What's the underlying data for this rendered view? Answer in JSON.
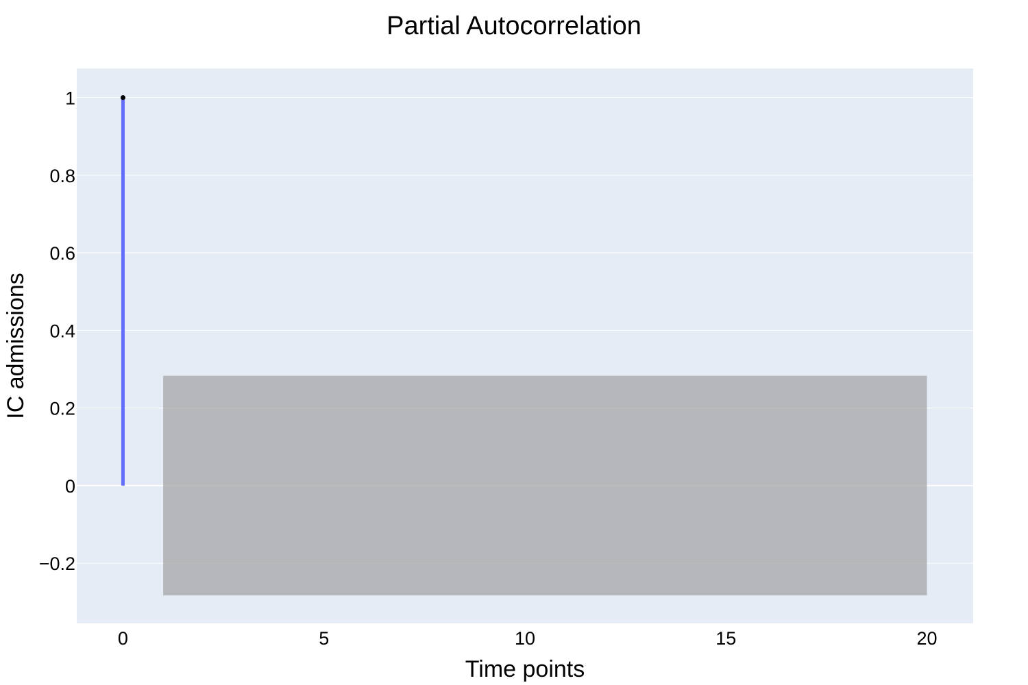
{
  "chart_data": {
    "type": "bar",
    "title": "Partial Autocorrelation",
    "xlabel": "Time points",
    "ylabel": "IC admissions",
    "xlim": [
      -1.15,
      21.15
    ],
    "ylim": [
      -0.355,
      1.075
    ],
    "xticks": [
      0,
      5,
      10,
      15,
      20
    ],
    "xtick_labels": [
      "0",
      "5",
      "10",
      "15",
      "20"
    ],
    "yticks": [
      -0.2,
      0,
      0.2,
      0.4,
      0.6,
      0.8,
      1
    ],
    "ytick_labels": [
      "−0.2",
      "0",
      "0.2",
      "0.4",
      "0.6",
      "0.8",
      "1"
    ],
    "grid": true,
    "stems": {
      "name": "pacf",
      "x": [
        0
      ],
      "y": [
        1.0
      ],
      "color": "#636efa",
      "marker_color": "#000000"
    },
    "confidence_band": {
      "x": [
        1,
        20
      ],
      "upper": 0.283,
      "lower": -0.283,
      "color": "#a6a6a6"
    },
    "colors": {
      "plot_background": "#e5ecf6",
      "gridline": "#ffffff"
    }
  }
}
